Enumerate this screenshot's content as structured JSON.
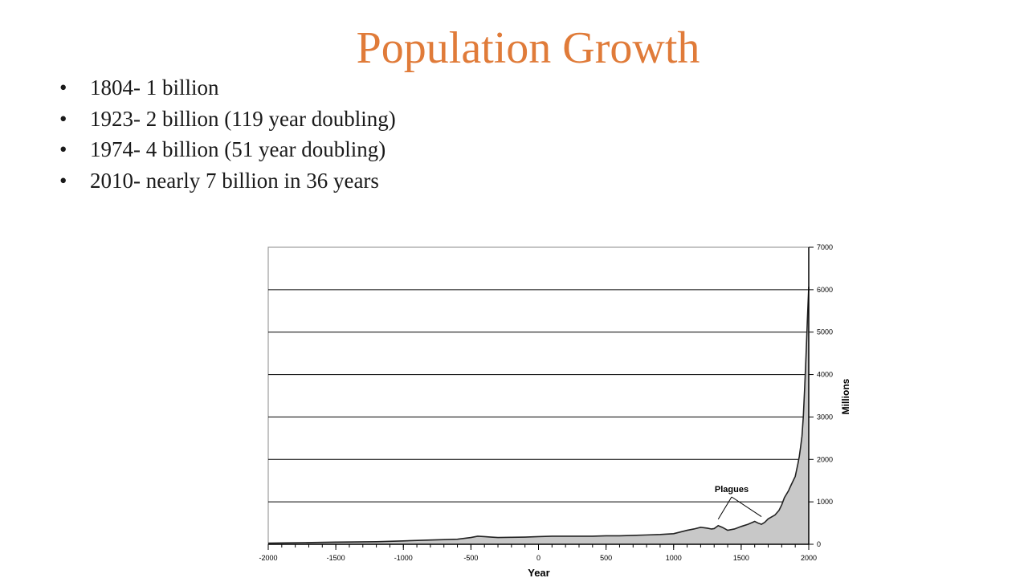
{
  "slide": {
    "title": "Population Growth",
    "bullets": [
      "1804- 1 billion",
      "1923- 2 billion (119 year doubling)",
      "1974- 4 billion (51 year doubling)",
      "2010- nearly 7 billion in 36 years"
    ],
    "bullet_glyph": "•",
    "title_color": "#e07b39"
  },
  "chart_data": {
    "type": "area",
    "xlabel": "Year",
    "ylabel": "Millions",
    "xlim": [
      -2000,
      2000
    ],
    "ylim": [
      0,
      7000
    ],
    "x_ticks": [
      -2000,
      -1500,
      -1000,
      -500,
      0,
      500,
      1000,
      1500,
      2000
    ],
    "y_ticks": [
      0,
      1000,
      2000,
      3000,
      4000,
      5000,
      6000,
      7000
    ],
    "y_axis_position": "right",
    "grid": "horizontal",
    "fill_color": "#c8c8c8",
    "line_color": "#222222",
    "annotation": {
      "text": "Plagues",
      "targets": [
        {
          "x": 1330,
          "y": 440
        },
        {
          "x": 1650,
          "y": 500
        }
      ]
    },
    "series": [
      {
        "x": [
          -2000,
          -1500,
          -1200,
          -1000,
          -800,
          -600,
          -500,
          -450,
          -400,
          -350,
          -300,
          -200,
          -100,
          0,
          100,
          200,
          300,
          400,
          500,
          600,
          700,
          800,
          900,
          1000,
          1050,
          1100,
          1150,
          1200,
          1250,
          1280,
          1300,
          1330,
          1360,
          1400,
          1450,
          1500,
          1550,
          1600,
          1625,
          1650,
          1675,
          1700,
          1750,
          1780,
          1800,
          1820,
          1850,
          1870,
          1900,
          1910,
          1920,
          1930,
          1940,
          1950,
          1960,
          1970,
          1980,
          1990,
          2000
        ],
        "y": [
          27,
          50,
          60,
          80,
          100,
          120,
          160,
          190,
          180,
          170,
          160,
          165,
          170,
          180,
          190,
          190,
          190,
          190,
          200,
          200,
          210,
          220,
          230,
          250,
          290,
          330,
          360,
          400,
          380,
          360,
          370,
          440,
          400,
          330,
          360,
          420,
          470,
          540,
          500,
          470,
          520,
          600,
          690,
          800,
          930,
          1100,
          1260,
          1400,
          1600,
          1750,
          1900,
          2070,
          2300,
          2550,
          3020,
          3700,
          4450,
          5300,
          6070
        ]
      }
    ]
  }
}
